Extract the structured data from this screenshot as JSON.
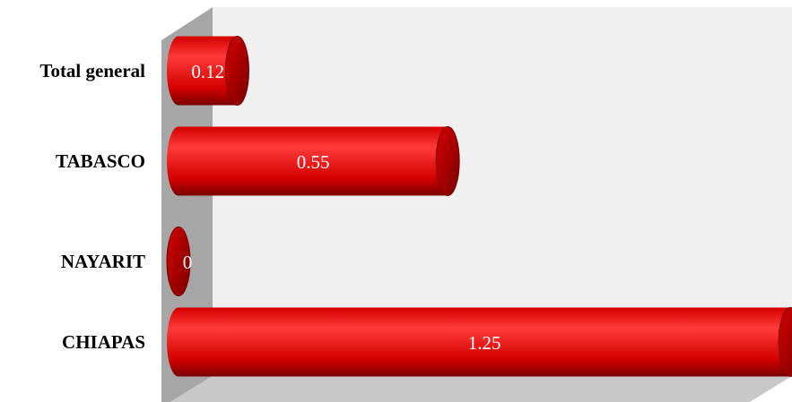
{
  "chart_data": {
    "type": "bar",
    "orientation": "horizontal",
    "style": "3d-cylinder",
    "categories": [
      "CHIAPAS",
      "NAYARIT",
      "TABASCO",
      "Total general"
    ],
    "values": [
      1.25,
      0,
      0.55,
      0.12
    ],
    "data_labels": [
      "1.25",
      "0",
      "0.55",
      "0.12"
    ],
    "xlim": [
      0,
      1.4
    ],
    "title": "",
    "xlabel": "",
    "ylabel": "",
    "grid": false,
    "legend": "none",
    "colors": {
      "bar": "#d40000",
      "bar_light": "#ff3a3a",
      "bar_dark": "#7a0000",
      "wall": "#f0f0f0",
      "side_wall": "#a6a6a6",
      "floor": "#c8c8c8"
    }
  }
}
